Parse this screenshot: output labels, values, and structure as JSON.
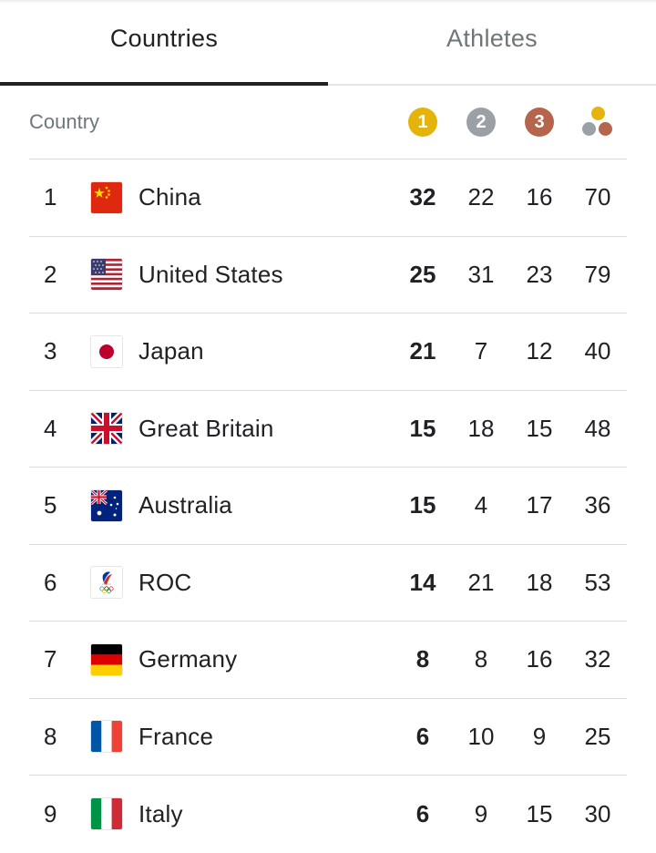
{
  "tabs": [
    {
      "label": "Countries",
      "active": true
    },
    {
      "label": "Athletes",
      "active": false
    }
  ],
  "header": {
    "country_label": "Country",
    "medals": [
      {
        "label": "1",
        "color": "#e4b30c"
      },
      {
        "label": "2",
        "color": "#9aa0a6"
      },
      {
        "label": "3",
        "color": "#b5654b"
      }
    ]
  },
  "rows": [
    {
      "rank": "1",
      "country": "China",
      "flag": "china-flag-icon",
      "gold": "32",
      "silver": "22",
      "bronze": "16",
      "total": "70"
    },
    {
      "rank": "2",
      "country": "United States",
      "flag": "usa-flag-icon",
      "gold": "25",
      "silver": "31",
      "bronze": "23",
      "total": "79"
    },
    {
      "rank": "3",
      "country": "Japan",
      "flag": "japan-flag-icon",
      "gold": "21",
      "silver": "7",
      "bronze": "12",
      "total": "40"
    },
    {
      "rank": "4",
      "country": "Great Britain",
      "flag": "uk-flag-icon",
      "gold": "15",
      "silver": "18",
      "bronze": "15",
      "total": "48"
    },
    {
      "rank": "5",
      "country": "Australia",
      "flag": "australia-flag-icon",
      "gold": "15",
      "silver": "4",
      "bronze": "17",
      "total": "36"
    },
    {
      "rank": "6",
      "country": "ROC",
      "flag": "roc-flag-icon",
      "gold": "14",
      "silver": "21",
      "bronze": "18",
      "total": "53"
    },
    {
      "rank": "7",
      "country": "Germany",
      "flag": "germany-flag-icon",
      "gold": "8",
      "silver": "8",
      "bronze": "16",
      "total": "32"
    },
    {
      "rank": "8",
      "country": "France",
      "flag": "france-flag-icon",
      "gold": "6",
      "silver": "10",
      "bronze": "9",
      "total": "25"
    },
    {
      "rank": "9",
      "country": "Italy",
      "flag": "italy-flag-icon",
      "gold": "6",
      "silver": "9",
      "bronze": "15",
      "total": "30"
    }
  ]
}
